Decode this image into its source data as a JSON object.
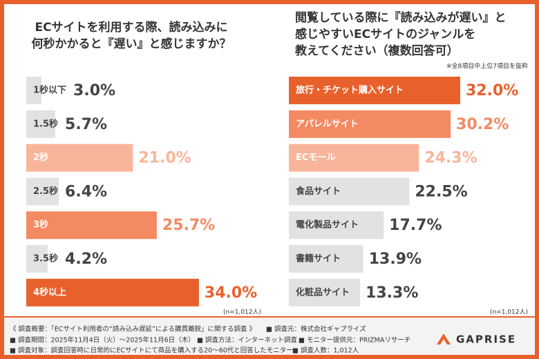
{
  "chart_data": [
    {
      "type": "hbar",
      "title": [
        "ECサイトを利用する際、読み込みに",
        "何秒かかると『遅い』と感じますか？"
      ],
      "categories": [
        "1秒以下",
        "1.5秒",
        "2秒",
        "2.5秒",
        "3秒",
        "3.5秒",
        "4秒以上"
      ],
      "values": [
        3.0,
        5.7,
        21.0,
        6.4,
        25.7,
        4.2,
        34.0
      ],
      "value_labels": [
        "3.0%",
        "5.7%",
        "21.0%",
        "6.4%",
        "25.7%",
        "4.2%",
        "34.0%"
      ],
      "colors": [
        "#e2e2e2",
        "#e2e2e2",
        "#f9b59a",
        "#e2e2e2",
        "#f38a62",
        "#e2e2e2",
        "#e8612d"
      ],
      "sample_note": "(n=1,012人)"
    },
    {
      "type": "hbar",
      "title": [
        "閲覧している際に『読み込みが遅い』と",
        "感じやすいECサイトのジャンルを",
        "教えてください（複数回答可）"
      ],
      "subtitle": "※全8項目中上位7項目を抜粋",
      "categories": [
        "旅行・チケット購入サイト",
        "アパレルサイト",
        "ECモール",
        "食品サイト",
        "電化製品サイト",
        "書籍サイト",
        "化粧品サイト"
      ],
      "values": [
        32.0,
        30.2,
        24.3,
        22.5,
        17.7,
        13.9,
        13.3
      ],
      "value_labels": [
        "32.0%",
        "30.2%",
        "24.3%",
        "22.5%",
        "17.7%",
        "13.9%",
        "13.3%"
      ],
      "colors": [
        "#e8612d",
        "#f38a62",
        "#f9b59a",
        "#e2e2e2",
        "#e2e2e2",
        "#e2e2e2",
        "#e2e2e2"
      ],
      "sample_note": "(n=1,012人)"
    }
  ],
  "footer": {
    "survey_title": "《 調査概要：「ECサイト利用者の“読み込み遅延”による購買離脱」に関する調査 》",
    "organizer": "■ 調査元：株式会社ギャプライズ",
    "period": "■ 調査期間：2025年11月4日（火）〜2025年11月6日（木）",
    "method": "■ 調査方法：インターネット調査",
    "provider": "■ モニター提供元：PRIZMAリサーチ",
    "target": "■ 調査対象：調査回答時に日常的にECサイトにて商品を購入する20〜60代と回答したモニター",
    "respondents": "■ 調査人数：1,012人",
    "logo": "GAPRISE"
  }
}
